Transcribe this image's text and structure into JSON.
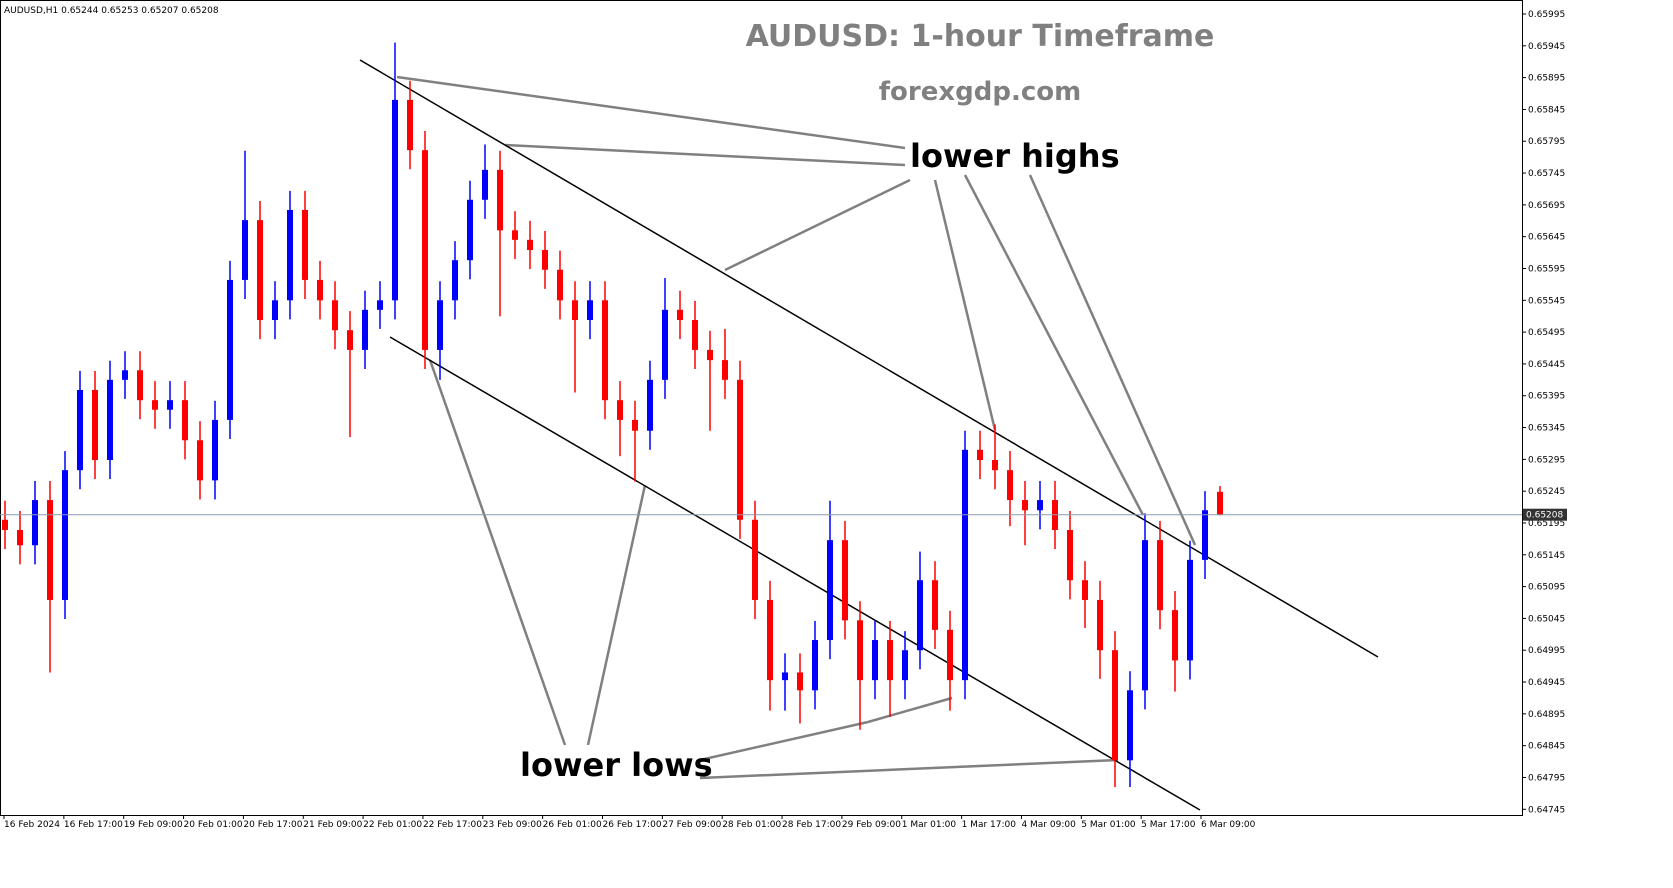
{
  "chart_data": {
    "type": "candlestick",
    "header": "AUDUSD,H1  0.65244 0.65253 0.65207 0.65208",
    "title": "AUDUSD: 1-hour Timeframe",
    "subtitle": "forexgdp.com",
    "annotations": [
      "lower highs",
      "lower lows"
    ],
    "x_labels": [
      "16 Feb 2024",
      "16 Feb 17:00",
      "19 Feb 09:00",
      "20 Feb 01:00",
      "20 Feb 17:00",
      "21 Feb 09:00",
      "22 Feb 01:00",
      "22 Feb 17:00",
      "23 Feb 09:00",
      "26 Feb 01:00",
      "26 Feb 17:00",
      "27 Feb 09:00",
      "28 Feb 01:00",
      "28 Feb 17:00",
      "29 Feb 09:00",
      "1 Mar 01:00",
      "1 Mar 17:00",
      "4 Mar 09:00",
      "5 Mar 01:00",
      "5 Mar 17:00",
      "6 Mar 09:00"
    ],
    "up_color": "#0000ff",
    "down_color": "#ff0000",
    "current_price": 0.65208,
    "ylim": [
      0.64736,
      0.66017
    ],
    "yticks": [
      0.64745,
      0.64795,
      0.64845,
      0.64895,
      0.64945,
      0.64995,
      0.65045,
      0.65095,
      0.65145,
      0.65195,
      0.65245,
      0.65295,
      0.65345,
      0.65395,
      0.65445,
      0.65495,
      0.65545,
      0.65595,
      0.65645,
      0.65695,
      0.65745,
      0.65795,
      0.65845,
      0.65895,
      0.65945,
      0.65995
    ],
    "open": [
      0.652,
      0.65184,
      0.6516,
      0.65231,
      0.65074,
      0.65278,
      0.65404,
      0.65294,
      0.6542,
      0.65435,
      0.65388,
      0.65373,
      0.65388,
      0.65325,
      0.65262,
      0.65357,
      0.65577,
      0.65671,
      0.65514,
      0.65545,
      0.65687,
      0.65577,
      0.65545,
      0.65498,
      0.65467,
      0.6553,
      0.65545,
      0.6586,
      0.65781,
      0.65467,
      0.65545,
      0.65608,
      0.65703,
      0.6575,
      0.65655,
      0.6564,
      0.65624,
      0.65593,
      0.65545,
      0.65514,
      0.65545,
      0.65388,
      0.65357,
      0.6534,
      0.6542,
      0.6553,
      0.65514,
      0.65467,
      0.65451,
      0.6542,
      0.652,
      0.65074,
      0.64948,
      0.6496,
      0.64932,
      0.65011,
      0.65168,
      0.65042,
      0.64948,
      0.65011,
      0.64948,
      0.64995,
      0.65105,
      0.65027,
      0.64948,
      0.6531,
      0.65294,
      0.65278,
      0.65231,
      0.65215,
      0.65231,
      0.65184,
      0.65105,
      0.65074,
      0.64995,
      0.64822,
      0.64932,
      0.65168,
      0.65058,
      0.64979,
      0.65137,
      0.65244
    ],
    "high": [
      0.6523,
      0.65214,
      0.65261,
      0.65261,
      0.65308,
      0.65434,
      0.65434,
      0.6545,
      0.65465,
      0.65465,
      0.65418,
      0.65418,
      0.65418,
      0.65355,
      0.65387,
      0.65607,
      0.6578,
      0.65701,
      0.65575,
      0.65717,
      0.65717,
      0.65607,
      0.65575,
      0.65528,
      0.6556,
      0.65575,
      0.6595,
      0.6589,
      0.65811,
      0.65575,
      0.65638,
      0.65733,
      0.6579,
      0.6578,
      0.65685,
      0.6567,
      0.65654,
      0.65623,
      0.65575,
      0.65575,
      0.65575,
      0.65418,
      0.65387,
      0.6545,
      0.6558,
      0.6556,
      0.65544,
      0.65497,
      0.655,
      0.6545,
      0.6523,
      0.65104,
      0.6499,
      0.6499,
      0.65041,
      0.6523,
      0.65198,
      0.65072,
      0.65041,
      0.65041,
      0.65025,
      0.6515,
      0.65135,
      0.65057,
      0.6534,
      0.6534,
      0.6535,
      0.65308,
      0.65261,
      0.65261,
      0.65261,
      0.65214,
      0.65135,
      0.65104,
      0.65025,
      0.64962,
      0.6521,
      0.65198,
      0.65088,
      0.65167,
      0.65245,
      0.65253
    ],
    "low": [
      0.65154,
      0.6513,
      0.6513,
      0.6496,
      0.65044,
      0.65248,
      0.65264,
      0.65264,
      0.6539,
      0.65358,
      0.65343,
      0.65343,
      0.65295,
      0.65232,
      0.65232,
      0.65327,
      0.65547,
      0.65484,
      0.65484,
      0.65515,
      0.65547,
      0.65515,
      0.65468,
      0.6533,
      0.65437,
      0.655,
      0.65515,
      0.65751,
      0.65437,
      0.6542,
      0.65515,
      0.65578,
      0.65673,
      0.6552,
      0.6561,
      0.65594,
      0.65563,
      0.65515,
      0.654,
      0.65484,
      0.65358,
      0.653,
      0.6526,
      0.6531,
      0.6539,
      0.65484,
      0.65437,
      0.6534,
      0.6539,
      0.6517,
      0.65044,
      0.649,
      0.649,
      0.6488,
      0.64902,
      0.64981,
      0.65012,
      0.6487,
      0.64918,
      0.6489,
      0.64918,
      0.64965,
      0.64997,
      0.649,
      0.64918,
      0.65264,
      0.65248,
      0.6519,
      0.6516,
      0.65185,
      0.65154,
      0.65075,
      0.6503,
      0.6495,
      0.6478,
      0.6478,
      0.64902,
      0.65028,
      0.6493,
      0.64949,
      0.65107,
      0.65207
    ],
    "close": [
      0.65184,
      0.6516,
      0.65231,
      0.65074,
      0.65278,
      0.65404,
      0.65294,
      0.6542,
      0.65435,
      0.65388,
      0.65373,
      0.65388,
      0.65325,
      0.65262,
      0.65357,
      0.65577,
      0.65671,
      0.65514,
      0.65545,
      0.65687,
      0.65577,
      0.65545,
      0.65498,
      0.65467,
      0.6553,
      0.65545,
      0.6586,
      0.65781,
      0.65467,
      0.65545,
      0.65608,
      0.65703,
      0.6575,
      0.65655,
      0.6564,
      0.65624,
      0.65593,
      0.65545,
      0.65514,
      0.65545,
      0.65388,
      0.65357,
      0.6534,
      0.6542,
      0.6553,
      0.65514,
      0.65467,
      0.65451,
      0.6542,
      0.652,
      0.65074,
      0.64948,
      0.6496,
      0.64932,
      0.65011,
      0.65168,
      0.65042,
      0.64948,
      0.65011,
      0.64948,
      0.64995,
      0.65105,
      0.65027,
      0.64948,
      0.6531,
      0.65294,
      0.65278,
      0.65231,
      0.65215,
      0.65231,
      0.65184,
      0.65105,
      0.65074,
      0.64995,
      0.64822,
      0.64932,
      0.65168,
      0.65058,
      0.64979,
      0.65137,
      0.65215,
      0.65208
    ]
  }
}
